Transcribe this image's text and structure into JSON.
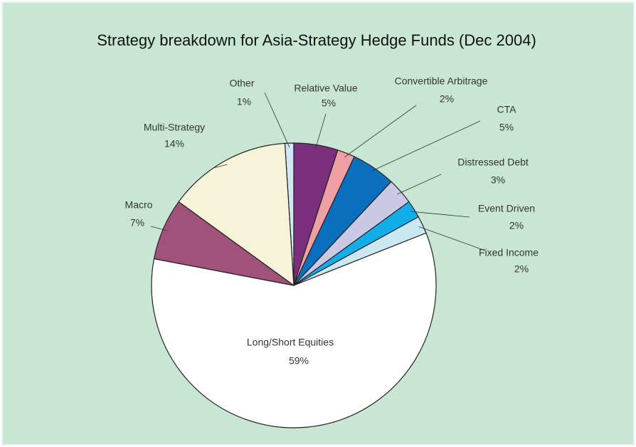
{
  "chart_data": {
    "type": "pie",
    "title": "Strategy breakdown for Asia-Strategy Hedge Funds (Dec 2004)",
    "categories": [
      "Other",
      "Relative Value",
      "Convertible Arbitrage",
      "CTA",
      "Distressed Debt",
      "Event Driven",
      "Fixed Income",
      "Long/Short Equities",
      "Macro",
      "Multi-Strategy"
    ],
    "values": [
      1,
      5,
      2,
      5,
      3,
      2,
      2,
      59,
      7,
      14
    ],
    "value_labels": [
      "1%",
      "5%",
      "2%",
      "5%",
      "3%",
      "2%",
      "2%",
      "59%",
      "7%",
      "14%"
    ],
    "colors": [
      "#cfe8f3",
      "#7b2f7c",
      "#f0a0a4",
      "#0a6fbd",
      "#c9c9e6",
      "#12aeea",
      "#cbe7f2",
      "#ffffff",
      "#a0527a",
      "#f6f3d9"
    ]
  }
}
